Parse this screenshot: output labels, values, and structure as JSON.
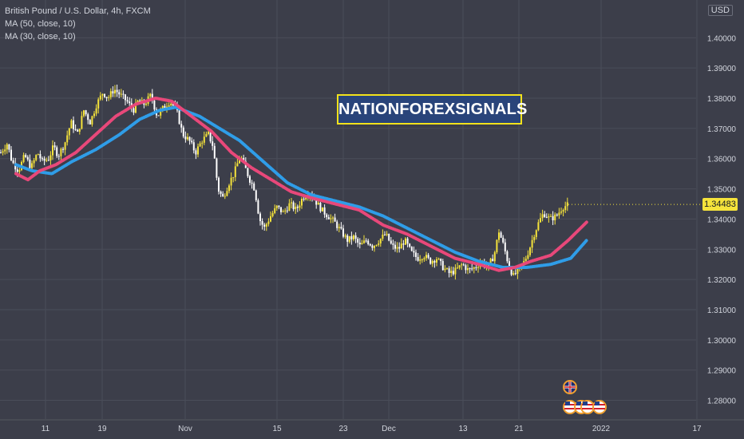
{
  "legend": {
    "symbol": "British Pound / U.S. Dollar, 4h, FXCM",
    "ma50": "MA (50, close, 10)",
    "ma30": "MA (30, close, 10)"
  },
  "watermark": "NATIONFOREXSIGNALS",
  "currency": "USD",
  "last_price": "1.34483",
  "colors": {
    "background": "#3c3e4a",
    "up_candle": "#f5e33b",
    "down_candle": "#ffffff",
    "ma50": "#2f9de8",
    "ma30": "#e8487a",
    "price_tag": "#f5e33b"
  },
  "icons": [
    "uk-flag-icon",
    "us-flag-icon"
  ],
  "chart_data": {
    "type": "candlestick",
    "title": "British Pound / U.S. Dollar, 4h, FXCM",
    "ylim": [
      1.2725,
      1.4125
    ],
    "y_ticks": [
      "1.40000",
      "1.39000",
      "1.38000",
      "1.37000",
      "1.36000",
      "1.35000",
      "1.34000",
      "1.33000",
      "1.32000",
      "1.31000",
      "1.30000",
      "1.29000",
      "1.28000"
    ],
    "x_ticks": [
      "11",
      "19",
      "Nov",
      "15",
      "23",
      "Dec",
      "13",
      "21",
      "2022",
      "17"
    ],
    "grid": true,
    "close_path": [
      [
        0,
        1.362
      ],
      [
        8,
        1.365
      ],
      [
        14,
        1.359
      ],
      [
        22,
        1.356
      ],
      [
        30,
        1.361
      ],
      [
        38,
        1.357
      ],
      [
        46,
        1.362
      ],
      [
        52,
        1.359
      ],
      [
        60,
        1.36
      ],
      [
        66,
        1.364
      ],
      [
        72,
        1.361
      ],
      [
        80,
        1.365
      ],
      [
        88,
        1.372
      ],
      [
        96,
        1.368
      ],
      [
        104,
        1.376
      ],
      [
        112,
        1.372
      ],
      [
        120,
        1.378
      ],
      [
        128,
        1.382
      ],
      [
        134,
        1.38
      ],
      [
        142,
        1.383
      ],
      [
        150,
        1.381
      ],
      [
        158,
        1.379
      ],
      [
        166,
        1.376
      ],
      [
        172,
        1.379
      ],
      [
        180,
        1.378
      ],
      [
        188,
        1.381
      ],
      [
        196,
        1.374
      ],
      [
        204,
        1.377
      ],
      [
        212,
        1.379
      ],
      [
        220,
        1.376
      ],
      [
        228,
        1.368
      ],
      [
        236,
        1.366
      ],
      [
        244,
        1.362
      ],
      [
        252,
        1.366
      ],
      [
        260,
        1.368
      ],
      [
        266,
        1.364
      ],
      [
        272,
        1.35
      ],
      [
        278,
        1.347
      ],
      [
        286,
        1.352
      ],
      [
        292,
        1.355
      ],
      [
        300,
        1.361
      ],
      [
        306,
        1.357
      ],
      [
        312,
        1.353
      ],
      [
        318,
        1.35
      ],
      [
        324,
        1.34
      ],
      [
        330,
        1.337
      ],
      [
        338,
        1.341
      ],
      [
        346,
        1.344
      ],
      [
        354,
        1.342
      ],
      [
        362,
        1.345
      ],
      [
        370,
        1.343
      ],
      [
        378,
        1.347
      ],
      [
        386,
        1.349
      ],
      [
        394,
        1.346
      ],
      [
        402,
        1.343
      ],
      [
        410,
        1.341
      ],
      [
        418,
        1.339
      ],
      [
        426,
        1.336
      ],
      [
        434,
        1.333
      ],
      [
        442,
        1.334
      ],
      [
        450,
        1.331
      ],
      [
        458,
        1.333
      ],
      [
        466,
        1.331
      ],
      [
        474,
        1.333
      ],
      [
        482,
        1.335
      ],
      [
        490,
        1.331
      ],
      [
        498,
        1.33
      ],
      [
        506,
        1.333
      ],
      [
        514,
        1.329
      ],
      [
        522,
        1.327
      ],
      [
        530,
        1.328
      ],
      [
        538,
        1.326
      ],
      [
        546,
        1.327
      ],
      [
        554,
        1.324
      ],
      [
        562,
        1.322
      ],
      [
        570,
        1.323
      ],
      [
        578,
        1.325
      ],
      [
        586,
        1.323
      ],
      [
        594,
        1.324
      ],
      [
        602,
        1.326
      ],
      [
        610,
        1.324
      ],
      [
        618,
        1.328
      ],
      [
        624,
        1.336
      ],
      [
        630,
        1.331
      ],
      [
        636,
        1.325
      ],
      [
        642,
        1.321
      ],
      [
        648,
        1.323
      ],
      [
        656,
        1.326
      ],
      [
        662,
        1.33
      ],
      [
        668,
        1.335
      ],
      [
        674,
        1.339
      ],
      [
        680,
        1.342
      ],
      [
        688,
        1.34
      ],
      [
        696,
        1.341
      ],
      [
        704,
        1.344
      ],
      [
        712,
        1.3448
      ]
    ],
    "series": [
      {
        "name": "MA (50, close, 10)",
        "points": [
          [
            20,
            1.358
          ],
          [
            40,
            1.356
          ],
          [
            65,
            1.355
          ],
          [
            90,
            1.359
          ],
          [
            120,
            1.363
          ],
          [
            150,
            1.368
          ],
          [
            175,
            1.373
          ],
          [
            200,
            1.376
          ],
          [
            220,
            1.377
          ],
          [
            250,
            1.374
          ],
          [
            275,
            1.37
          ],
          [
            300,
            1.366
          ],
          [
            330,
            1.359
          ],
          [
            360,
            1.352
          ],
          [
            390,
            1.348
          ],
          [
            420,
            1.346
          ],
          [
            450,
            1.344
          ],
          [
            480,
            1.341
          ],
          [
            510,
            1.337
          ],
          [
            540,
            1.333
          ],
          [
            570,
            1.329
          ],
          [
            600,
            1.326
          ],
          [
            630,
            1.324
          ],
          [
            660,
            1.324
          ],
          [
            690,
            1.325
          ],
          [
            715,
            1.327
          ],
          [
            735,
            1.333
          ]
        ]
      },
      {
        "name": "MA (30, close, 10)",
        "points": [
          [
            20,
            1.355
          ],
          [
            35,
            1.353
          ],
          [
            50,
            1.356
          ],
          [
            70,
            1.358
          ],
          [
            95,
            1.362
          ],
          [
            120,
            1.368
          ],
          [
            145,
            1.374
          ],
          [
            170,
            1.378
          ],
          [
            195,
            1.38
          ],
          [
            215,
            1.379
          ],
          [
            240,
            1.374
          ],
          [
            265,
            1.369
          ],
          [
            290,
            1.362
          ],
          [
            315,
            1.357
          ],
          [
            340,
            1.353
          ],
          [
            365,
            1.349
          ],
          [
            390,
            1.347
          ],
          [
            420,
            1.345
          ],
          [
            450,
            1.343
          ],
          [
            480,
            1.338
          ],
          [
            510,
            1.335
          ],
          [
            540,
            1.331
          ],
          [
            570,
            1.327
          ],
          [
            600,
            1.325
          ],
          [
            625,
            1.323
          ],
          [
            645,
            1.324
          ],
          [
            665,
            1.326
          ],
          [
            690,
            1.328
          ],
          [
            712,
            1.333
          ],
          [
            735,
            1.339
          ]
        ]
      }
    ]
  }
}
